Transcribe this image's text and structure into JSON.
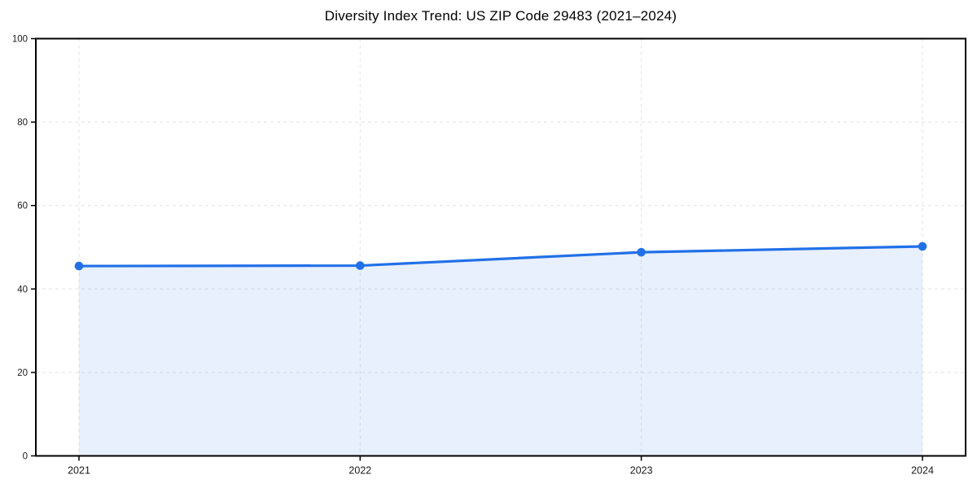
{
  "chart_data": {
    "type": "line",
    "title": "Diversity Index Trend: US ZIP Code 29483 (2021–2024)",
    "categories": [
      "2021",
      "2022",
      "2023",
      "2024"
    ],
    "series": [
      {
        "name": "Diversity Index",
        "values": [
          45.5,
          45.6,
          48.8,
          50.2
        ]
      }
    ],
    "xlabel": "",
    "ylabel": "",
    "ylim": [
      0,
      100
    ],
    "yticks": [
      0,
      20,
      40,
      60,
      80,
      100
    ],
    "grid": "dashed-both-axes",
    "legend": "none",
    "area_fill": true,
    "marker": "circle",
    "colors": {
      "line": "#2170e8",
      "marker": "#2170e8",
      "area_fill": "rgba(33,112,232,0.10)",
      "grid": "#e3e3e3",
      "axis": "#000000",
      "tick_label": "#1a1a1a",
      "title": "#000000",
      "background": "#ffffff"
    }
  }
}
